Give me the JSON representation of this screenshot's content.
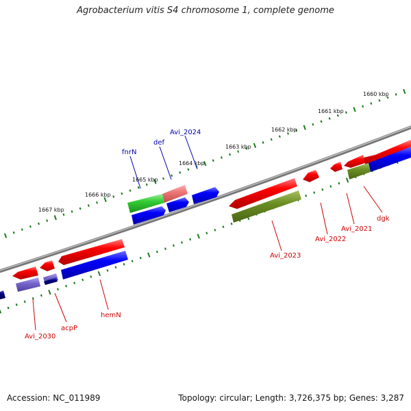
{
  "title": "Agrobacterium vitis S4 chromosome 1, complete genome",
  "footer": {
    "accession": "Accession: NC_011989",
    "topology": "Topology: circular; Length: 3,726,375 bp; Genes: 3,287"
  },
  "scale_labels": [
    "1660 kbp",
    "1661 kbp",
    "1662 kbp",
    "1663 kbp",
    "1664 kbp",
    "1665 kbp",
    "1666 kbp",
    "1667 kbp"
  ],
  "genes": [
    {
      "name": "fnrN",
      "strand": "forward",
      "color": "#0000aa"
    },
    {
      "name": "def",
      "strand": "forward",
      "color": "#0000aa"
    },
    {
      "name": "Avi_2024",
      "strand": "forward",
      "color": "#0000aa"
    },
    {
      "name": "Avi_2023",
      "strand": "reverse",
      "color": "#cc0000"
    },
    {
      "name": "Avi_2022",
      "strand": "reverse",
      "color": "#cc0000"
    },
    {
      "name": "Avi_2021",
      "strand": "reverse",
      "color": "#cc0000"
    },
    {
      "name": "dgk",
      "strand": "reverse",
      "color": "#cc0000"
    },
    {
      "name": "hemN",
      "strand": "reverse",
      "color": "#cc0000"
    },
    {
      "name": "acpP",
      "strand": "reverse",
      "color": "#cc0000"
    },
    {
      "name": "Avi_2030",
      "strand": "reverse",
      "color": "#cc0000"
    }
  ],
  "feature_colors": {
    "cds_forward": "#ff0000",
    "cds_reverse": "#0000ff",
    "green": "#33cc33",
    "pink": "#ee7777",
    "olive": "#6b8e23",
    "lavender": "#7766cc",
    "navy": "#000080",
    "backbone": "#888888",
    "scale_ticks": "#1a7a1a"
  }
}
